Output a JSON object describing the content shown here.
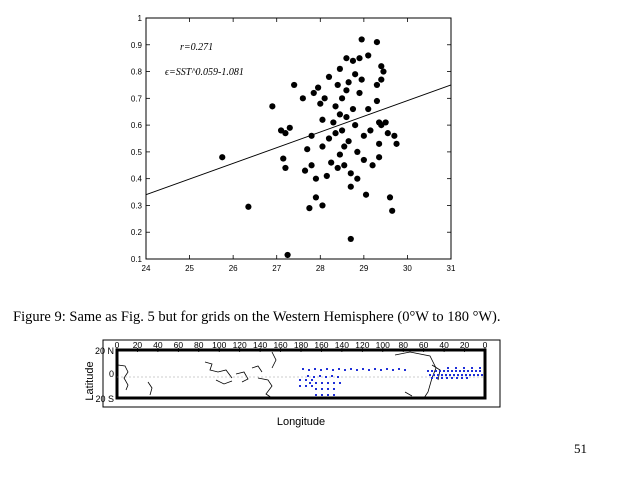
{
  "figure_top": {
    "chart_data": {
      "type": "scatter",
      "xlim": [
        24,
        31
      ],
      "ylim": [
        0.1,
        1.0
      ],
      "xticks": [
        "24",
        "25",
        "26",
        "27",
        "28",
        "29",
        "30",
        "31"
      ],
      "yticks": [
        "0.1",
        "0.2",
        "0.3",
        "0.4",
        "0.5",
        "0.6",
        "0.7",
        "0.8",
        "0.9",
        "1"
      ],
      "annotations": [
        "r=0.271",
        "ϵ=SST^0.059-1.081"
      ],
      "annotation_r": "r=0.271",
      "annotation_eq": "ϵ=SST^0.059-1.081",
      "fit_line": {
        "x": [
          24,
          31
        ],
        "y": [
          0.34,
          0.75
        ]
      },
      "grid": false,
      "marker_color": "#000000",
      "points": [
        [
          25.75,
          0.48
        ],
        [
          26.35,
          0.295
        ],
        [
          26.9,
          0.67
        ],
        [
          27.1,
          0.58
        ],
        [
          27.15,
          0.475
        ],
        [
          27.2,
          0.57
        ],
        [
          27.2,
          0.44
        ],
        [
          27.25,
          0.115
        ],
        [
          27.3,
          0.59
        ],
        [
          27.4,
          0.75
        ],
        [
          27.6,
          0.7
        ],
        [
          27.65,
          0.43
        ],
        [
          27.7,
          0.51
        ],
        [
          27.75,
          0.29
        ],
        [
          27.8,
          0.56
        ],
        [
          27.8,
          0.45
        ],
        [
          27.85,
          0.72
        ],
        [
          27.9,
          0.4
        ],
        [
          27.9,
          0.33
        ],
        [
          27.95,
          0.74
        ],
        [
          28.0,
          0.68
        ],
        [
          28.05,
          0.62
        ],
        [
          28.05,
          0.52
        ],
        [
          28.05,
          0.3
        ],
        [
          28.1,
          0.7
        ],
        [
          28.15,
          0.41
        ],
        [
          28.2,
          0.78
        ],
        [
          28.2,
          0.55
        ],
        [
          28.25,
          0.46
        ],
        [
          28.3,
          0.61
        ],
        [
          28.35,
          0.67
        ],
        [
          28.35,
          0.57
        ],
        [
          28.4,
          0.75
        ],
        [
          28.4,
          0.44
        ],
        [
          28.45,
          0.81
        ],
        [
          28.45,
          0.64
        ],
        [
          28.5,
          0.7
        ],
        [
          28.5,
          0.58
        ],
        [
          28.55,
          0.52
        ],
        [
          28.55,
          0.45
        ],
        [
          28.6,
          0.85
        ],
        [
          28.6,
          0.73
        ],
        [
          28.6,
          0.63
        ],
        [
          28.65,
          0.76
        ],
        [
          28.65,
          0.54
        ],
        [
          28.7,
          0.42
        ],
        [
          28.7,
          0.175
        ],
        [
          28.7,
          0.37
        ],
        [
          28.75,
          0.84
        ],
        [
          28.75,
          0.66
        ],
        [
          28.8,
          0.79
        ],
        [
          28.8,
          0.6
        ],
        [
          28.85,
          0.5
        ],
        [
          28.9,
          0.72
        ],
        [
          28.95,
          0.92
        ],
        [
          28.95,
          0.77
        ],
        [
          29.0,
          0.56
        ],
        [
          29.0,
          0.47
        ],
        [
          29.05,
          0.34
        ],
        [
          29.1,
          0.86
        ],
        [
          29.1,
          0.66
        ],
        [
          29.15,
          0.58
        ],
        [
          29.2,
          0.45
        ],
        [
          29.3,
          0.91
        ],
        [
          29.3,
          0.75
        ],
        [
          29.3,
          0.69
        ],
        [
          29.35,
          0.61
        ],
        [
          29.35,
          0.53
        ],
        [
          29.35,
          0.48
        ],
        [
          29.4,
          0.82
        ],
        [
          29.4,
          0.77
        ],
        [
          29.4,
          0.6
        ],
        [
          29.45,
          0.8
        ],
        [
          29.5,
          0.61
        ],
        [
          29.55,
          0.57
        ],
        [
          29.6,
          0.33
        ],
        [
          29.65,
          0.28
        ],
        [
          29.7,
          0.56
        ],
        [
          29.75,
          0.53
        ],
        [
          28.9,
          0.85
        ],
        [
          28.45,
          0.49
        ],
        [
          28.85,
          0.4
        ]
      ]
    }
  },
  "caption": "Figure 9: Same as Fig. 5 but for grids on the Western Hemisphere (0°W to 180 °W).",
  "figure_bottom": {
    "xlabel": "Longitude",
    "ylabel": "Latitude",
    "lon_ticks": [
      "0",
      "20",
      "40",
      "60",
      "80",
      "100",
      "120",
      "140",
      "160",
      "180",
      "160",
      "140",
      "120",
      "100",
      "80",
      "60",
      "40",
      "20",
      "0"
    ],
    "lat_ticks": [
      "20 N",
      "0",
      "20 S"
    ],
    "grid_point_color": "#1f2fd8",
    "coast_color": "#000000"
  },
  "page_number": "51"
}
